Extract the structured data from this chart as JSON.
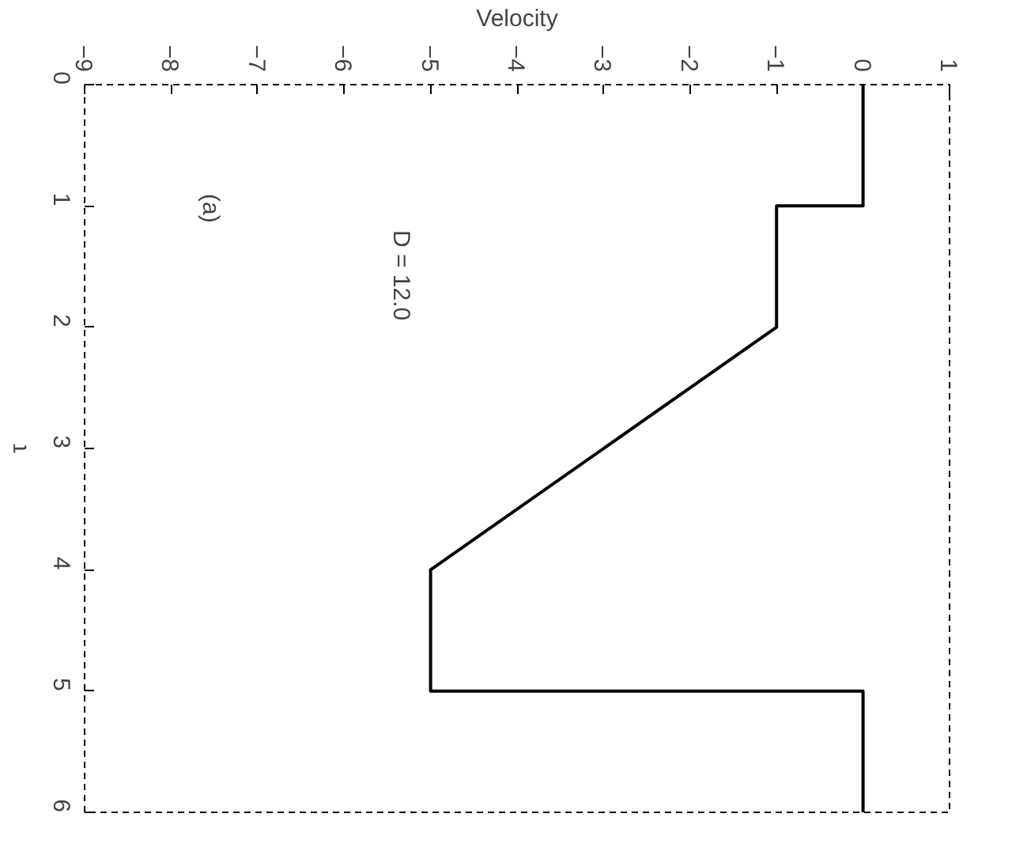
{
  "chart_data": {
    "type": "line",
    "xlabel": "Velocity",
    "ylabel": "τ",
    "series": [
      {
        "color": "#000000",
        "x": [
          0,
          0,
          -1,
          -1,
          -5,
          -5,
          0,
          0
        ],
        "values": [
          0,
          1,
          1,
          2,
          4,
          5,
          5,
          6
        ]
      }
    ],
    "xlim": [
      -9,
      1
    ],
    "ylim": [
      6,
      0
    ],
    "xticks": [
      -9,
      -8,
      -7,
      -6,
      -5,
      -4,
      -3,
      -2,
      -1,
      0,
      1
    ],
    "yticks": [
      0,
      1,
      2,
      3,
      4,
      5,
      6
    ],
    "annotations": [
      "D = 12.0",
      "(a)"
    ],
    "marker": "none",
    "line_style": "solid"
  }
}
